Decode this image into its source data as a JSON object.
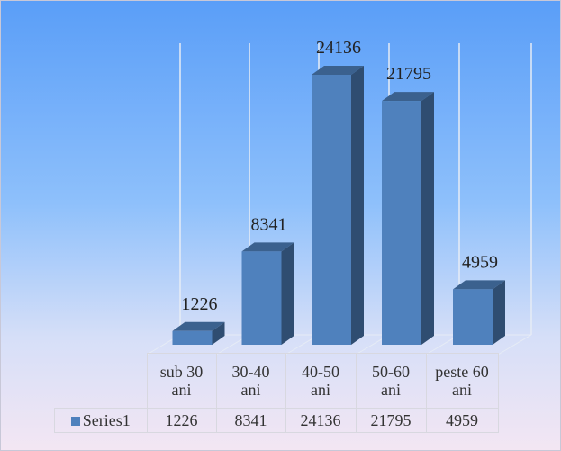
{
  "chart_data": {
    "type": "bar3d",
    "categories": [
      "sub 30 ani",
      "30-40 ani",
      "40-50 ani",
      "50-60 ani",
      "peste 60 ani"
    ],
    "series": [
      {
        "name": "Series1",
        "color": "#4f81bd",
        "values": [
          1226,
          8341,
          24136,
          21795,
          4959
        ]
      }
    ]
  }
}
